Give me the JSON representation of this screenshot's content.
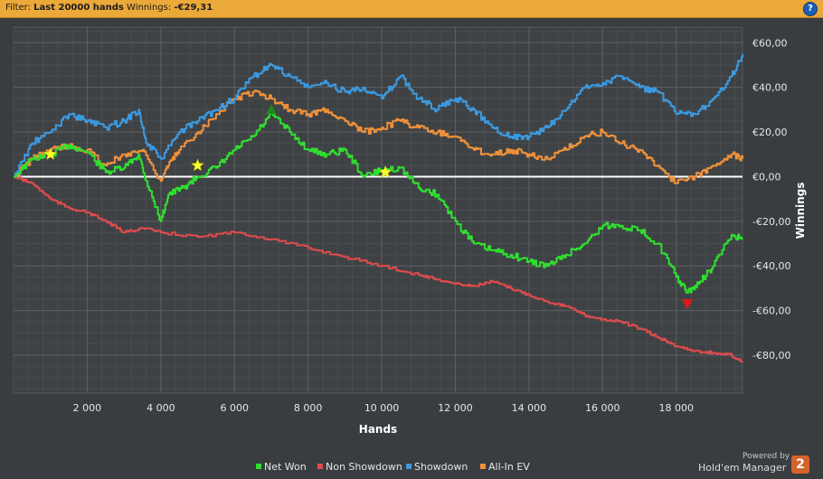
{
  "filter_bar": {
    "filter_label": "Filter:",
    "filter_value": "Last 20000 hands",
    "winnings_label": "Winnings:",
    "winnings_value": "-€29,31",
    "help_icon": "?"
  },
  "branding": {
    "powered_by": "Powered by",
    "product": "Hold'em Manager",
    "version_badge": "2"
  },
  "colors": {
    "net_won": "#2fe02f",
    "non_showdown": "#e04b4b",
    "showdown": "#3b9ae0",
    "all_in_ev": "#f0913a",
    "zero_line": "#ffffff"
  },
  "chart_data": {
    "type": "line",
    "xlabel": "Hands",
    "ylabel": "Winnings",
    "xlim": [
      0,
      19800
    ],
    "ylim": [
      -97,
      67
    ],
    "x_ticks": [
      2000,
      4000,
      6000,
      8000,
      10000,
      12000,
      14000,
      16000,
      18000
    ],
    "x_tick_labels": [
      "2 000",
      "4 000",
      "6 000",
      "8 000",
      "10 000",
      "12 000",
      "14 000",
      "16 000",
      "18 000"
    ],
    "y_ticks": [
      60,
      40,
      20,
      0,
      -20,
      -40,
      -60,
      -80
    ],
    "y_tick_labels": [
      "€60,00",
      "€40,00",
      "€20,00",
      "€0,00",
      "-€20,00",
      "-€40,00",
      "-€60,00",
      "-€80,00"
    ],
    "grid": true,
    "legend_position": "bottom",
    "series": [
      {
        "name": "Net Won",
        "color": "#2fe02f",
        "x": [
          0,
          500,
          1000,
          1500,
          2000,
          2500,
          3000,
          3400,
          3600,
          4000,
          4200,
          4600,
          5000,
          5500,
          6000,
          6500,
          7000,
          7500,
          8000,
          8500,
          9000,
          9500,
          10000,
          10500,
          11000,
          11500,
          12000,
          12500,
          13000,
          13500,
          14000,
          14500,
          15000,
          15500,
          16000,
          16500,
          17000,
          17500,
          18000,
          18300,
          18600,
          19000,
          19500,
          19800
        ],
        "y": [
          0,
          8,
          10,
          14,
          11,
          2,
          4,
          10,
          -2,
          -20,
          -8,
          -5,
          0,
          4,
          12,
          18,
          28,
          20,
          12,
          10,
          12,
          0,
          3,
          4,
          -5,
          -8,
          -20,
          -30,
          -33,
          -35,
          -38,
          -40,
          -35,
          -30,
          -22,
          -22,
          -24,
          -30,
          -45,
          -52,
          -48,
          -40,
          -26,
          -28
        ]
      },
      {
        "name": "Non Showdown",
        "color": "#e04b4b",
        "x": [
          0,
          500,
          1000,
          1500,
          2000,
          2500,
          3000,
          3500,
          4000,
          5000,
          6000,
          7000,
          8000,
          9000,
          10000,
          11000,
          11500,
          12000,
          12500,
          13000,
          13500,
          14000,
          14500,
          15000,
          15500,
          16000,
          16500,
          17000,
          17500,
          18000,
          18500,
          19000,
          19500,
          19800
        ],
        "y": [
          0,
          -3,
          -10,
          -14,
          -16,
          -20,
          -25,
          -23,
          -25,
          -27,
          -25,
          -28,
          -32,
          -36,
          -40,
          -44,
          -46,
          -48,
          -49,
          -47,
          -50,
          -53,
          -56,
          -58,
          -62,
          -64,
          -65,
          -68,
          -72,
          -76,
          -78,
          -79,
          -80,
          -83
        ]
      },
      {
        "name": "Showdown",
        "color": "#3b9ae0",
        "x": [
          0,
          500,
          1000,
          1500,
          2000,
          2500,
          3000,
          3400,
          3600,
          4000,
          4500,
          5000,
          5500,
          6000,
          6500,
          7000,
          7500,
          8000,
          8500,
          9000,
          9500,
          10000,
          10500,
          11000,
          11500,
          12000,
          12500,
          13000,
          13500,
          14000,
          14500,
          15000,
          15500,
          16000,
          16500,
          17000,
          17500,
          18000,
          18500,
          19000,
          19500,
          19800
        ],
        "y": [
          0,
          15,
          20,
          28,
          25,
          22,
          25,
          30,
          15,
          8,
          20,
          25,
          30,
          35,
          45,
          50,
          45,
          40,
          42,
          38,
          40,
          35,
          45,
          35,
          30,
          35,
          30,
          22,
          18,
          18,
          22,
          30,
          40,
          42,
          45,
          40,
          38,
          28,
          28,
          35,
          45,
          55
        ]
      },
      {
        "name": "All-In EV",
        "color": "#f0913a",
        "x": [
          0,
          500,
          1000,
          1500,
          2000,
          2500,
          3000,
          3500,
          4000,
          4200,
          4500,
          5000,
          5500,
          6000,
          6500,
          7000,
          7500,
          8000,
          8500,
          9000,
          9500,
          10000,
          10500,
          11000,
          11500,
          12000,
          12500,
          13000,
          13500,
          14000,
          14500,
          15000,
          15500,
          16000,
          16500,
          17000,
          17500,
          18000,
          18500,
          19000,
          19500,
          19800
        ],
        "y": [
          0,
          8,
          12,
          14,
          12,
          5,
          10,
          12,
          -2,
          5,
          12,
          20,
          28,
          35,
          38,
          35,
          30,
          28,
          30,
          25,
          20,
          22,
          25,
          22,
          20,
          18,
          12,
          10,
          12,
          10,
          8,
          12,
          18,
          20,
          15,
          12,
          5,
          -3,
          0,
          5,
          10,
          8
        ]
      }
    ],
    "annotations": [
      {
        "shape": "star",
        "x": 1000,
        "y": 10
      },
      {
        "shape": "star",
        "x": 5000,
        "y": 5
      },
      {
        "shape": "star",
        "x": 10100,
        "y": 2
      },
      {
        "shape": "triangle-up",
        "x": 7000,
        "y": 30
      },
      {
        "shape": "triangle-down",
        "x": 18300,
        "y": -57
      }
    ]
  }
}
